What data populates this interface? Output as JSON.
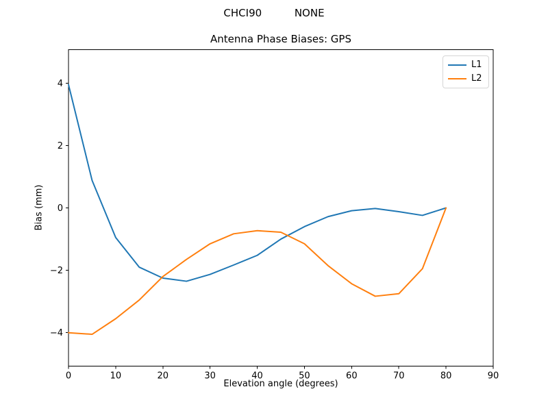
{
  "figure": {
    "suptitle": "CHCI90          NONE",
    "background": "#ffffff"
  },
  "chart_data": {
    "type": "line",
    "title": "Antenna Phase Biases: GPS",
    "xlabel": "Elevation angle (degrees)",
    "ylabel": "Bias (mm)",
    "xlim": [
      0,
      90
    ],
    "ylim": [
      -5.07,
      5.07
    ],
    "xticks": [
      0,
      10,
      20,
      30,
      40,
      50,
      60,
      70,
      80,
      90
    ],
    "xtick_labels": [
      "0",
      "10",
      "20",
      "30",
      "40",
      "50",
      "60",
      "70",
      "80",
      "90"
    ],
    "yticks": [
      4,
      2,
      0,
      -2,
      -4
    ],
    "ytick_labels": [
      "4",
      "2",
      "0",
      "−2",
      "−4"
    ],
    "grid": false,
    "legend_position": "upper right",
    "axis_color": "#000000",
    "x": [
      0,
      5,
      10,
      15,
      20,
      25,
      30,
      35,
      40,
      45,
      50,
      55,
      60,
      65,
      70,
      75,
      80
    ],
    "series": [
      {
        "name": "L1",
        "color": "#1f77b4",
        "values": [
          3.95,
          0.88,
          -0.95,
          -1.9,
          -2.25,
          -2.35,
          -2.13,
          -1.83,
          -1.52,
          -1.0,
          -0.6,
          -0.28,
          -0.09,
          -0.02,
          -0.12,
          -0.24,
          0.0
        ]
      },
      {
        "name": "L2",
        "color": "#ff7f0e",
        "values": [
          -4.0,
          -4.05,
          -3.55,
          -2.95,
          -2.2,
          -1.65,
          -1.15,
          -0.83,
          -0.73,
          -0.78,
          -1.15,
          -1.85,
          -2.43,
          -2.83,
          -2.75,
          -1.95,
          0.0
        ]
      }
    ]
  }
}
